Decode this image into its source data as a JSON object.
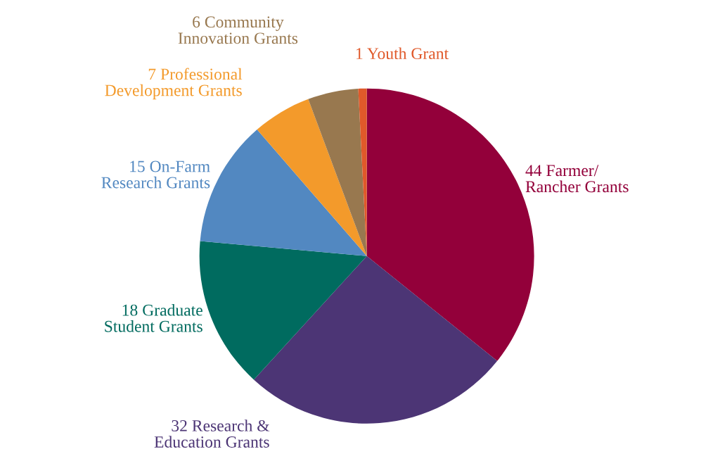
{
  "chart_data": {
    "type": "pie",
    "categories": [
      "44 Farmer/\nRancher Grants",
      "32 Research &\nEducation Grants",
      "18 Graduate\nStudent Grants",
      "15 On-Farm\nResearch Grants",
      "7 Professional\nDevelopment Grants",
      "6 Community\nInnovation Grants",
      "1 Youth Grant"
    ],
    "values": [
      44,
      32,
      18,
      15,
      7,
      6,
      1
    ],
    "colors": [
      "#93003a",
      "#4c3575",
      "#006b5f",
      "#5288c1",
      "#f39a2b",
      "#98784f",
      "#e0592a"
    ],
    "legend": false
  }
}
